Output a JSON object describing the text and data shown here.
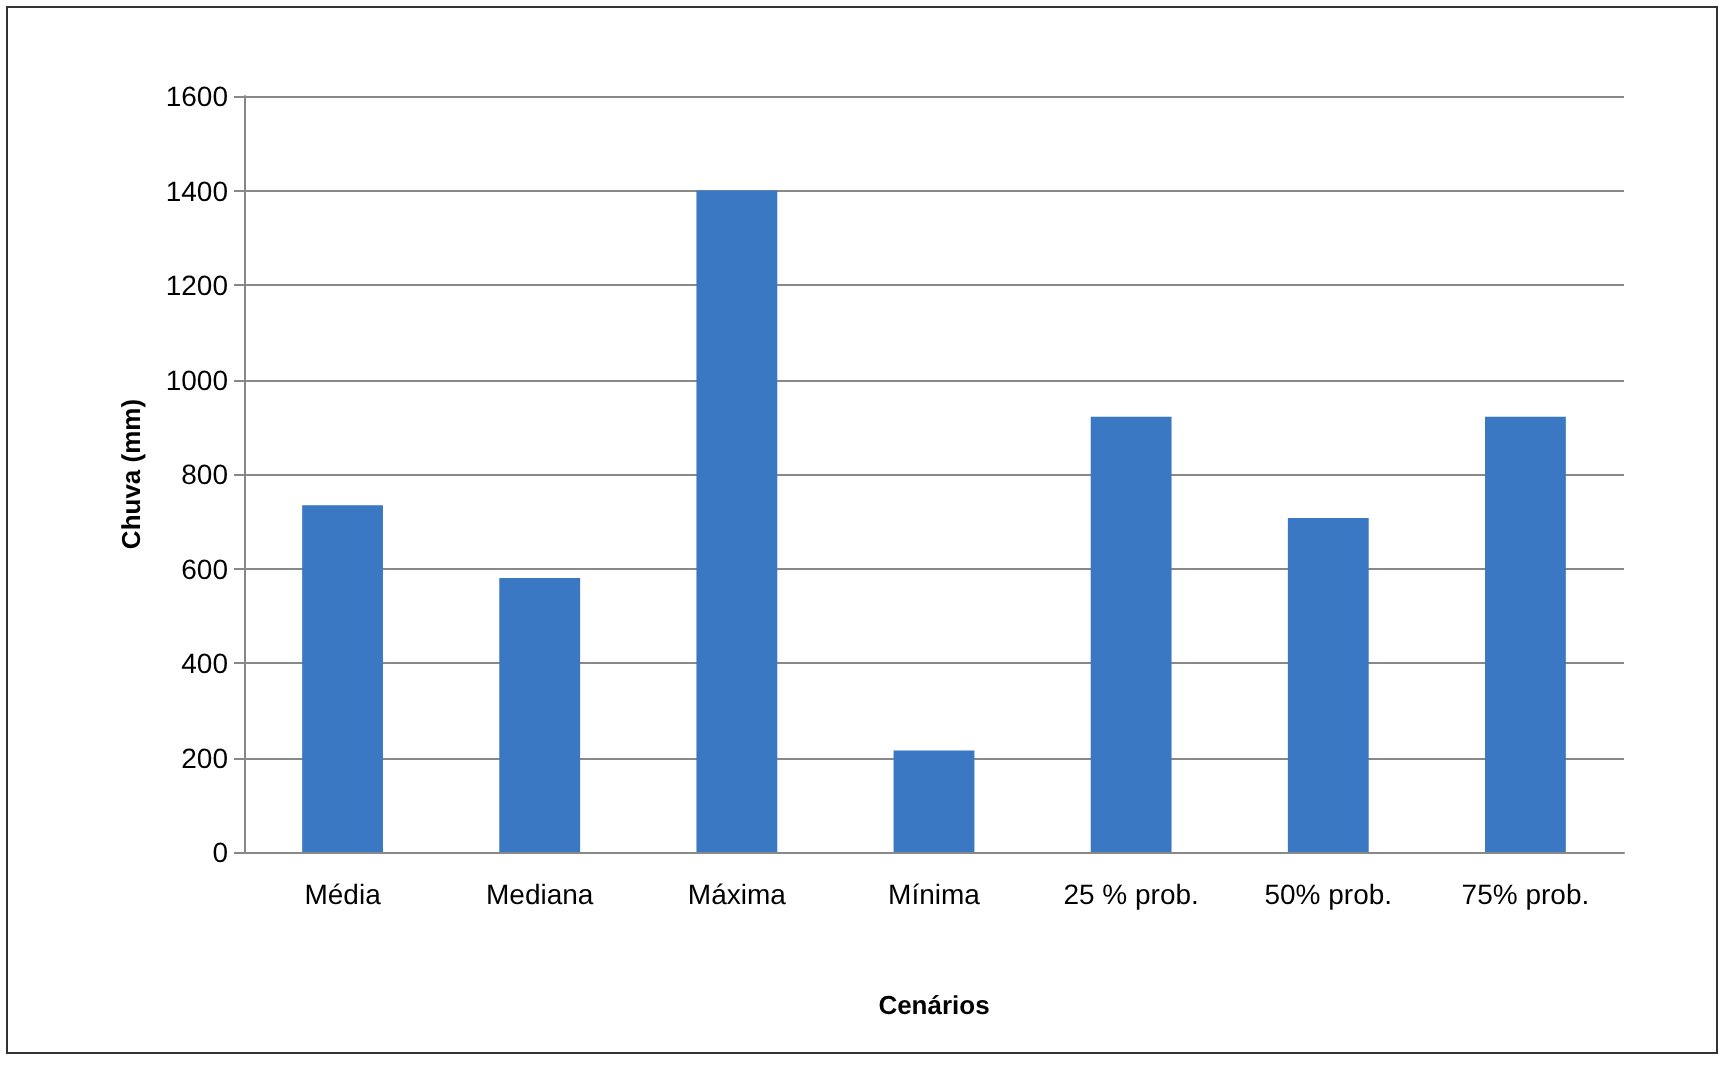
{
  "chart_data": {
    "type": "bar",
    "xlabel": "Cenários",
    "ylabel": "Chuva (mm)",
    "categories": [
      "Média",
      "Mediana",
      "Máxima",
      "Mínima",
      "25 % prob.",
      "50% prob.",
      "75% prob."
    ],
    "values": [
      734,
      580,
      1400,
      215,
      921,
      707,
      921
    ],
    "color": "#3a78c4",
    "ylim": [
      0,
      1600
    ],
    "yticks": [
      0,
      200,
      400,
      600,
      800,
      1000,
      1200,
      1400,
      1600
    ],
    "grid": "y"
  }
}
